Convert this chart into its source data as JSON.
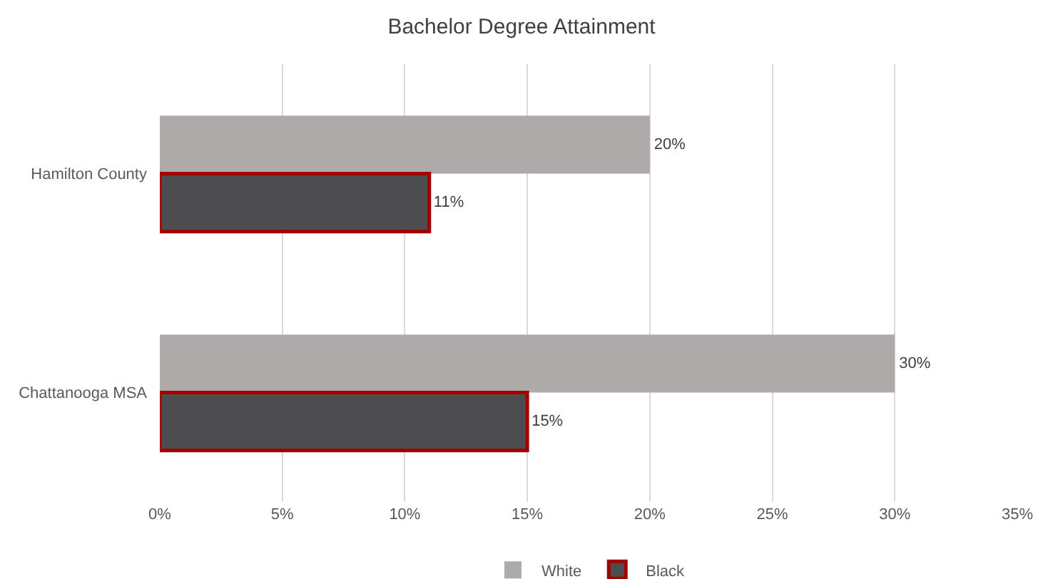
{
  "chart_data": {
    "type": "bar",
    "orientation": "horizontal",
    "title": "Bachelor Degree Attainment",
    "categories": [
      "Hamilton County",
      "Chattanooga MSA"
    ],
    "series": [
      {
        "name": "White",
        "color": "#aeaaaa",
        "values": [
          20,
          30
        ],
        "value_labels": [
          "20%",
          "30%"
        ]
      },
      {
        "name": "Black",
        "color": "#4d4d4f",
        "values": [
          11,
          15
        ],
        "value_labels": [
          "11%",
          "15%"
        ]
      }
    ],
    "xlim": [
      0,
      35
    ],
    "xticks": [
      {
        "value": 0,
        "label": "0%"
      },
      {
        "value": 5,
        "label": "5%"
      },
      {
        "value": 10,
        "label": "10%"
      },
      {
        "value": 15,
        "label": "15%"
      },
      {
        "value": 20,
        "label": "20%"
      },
      {
        "value": 25,
        "label": "25%"
      },
      {
        "value": 30,
        "label": "30%"
      },
      {
        "value": 35,
        "label": "35%"
      }
    ],
    "grid": "x",
    "legend": "bottom"
  }
}
